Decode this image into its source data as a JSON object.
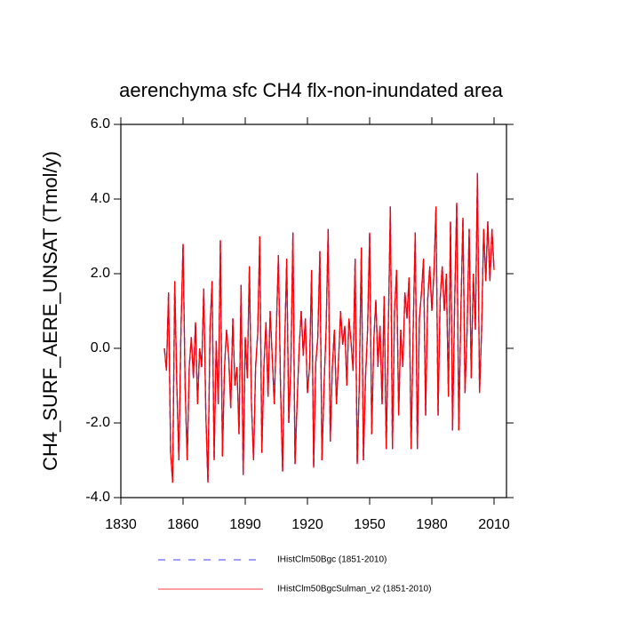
{
  "chart_data": {
    "type": "line",
    "title": "aerenchyma sfc CH4 flx-non-inundated area",
    "y_label": "CH4_SURF_AERE_UNSAT  (Tmol/y)",
    "x": [
      1851,
      1852,
      1853,
      1854,
      1855,
      1856,
      1857,
      1858,
      1859,
      1860,
      1861,
      1862,
      1863,
      1864,
      1865,
      1866,
      1867,
      1868,
      1869,
      1870,
      1871,
      1872,
      1873,
      1874,
      1875,
      1876,
      1877,
      1878,
      1879,
      1880,
      1881,
      1882,
      1883,
      1884,
      1885,
      1886,
      1887,
      1888,
      1889,
      1890,
      1891,
      1892,
      1893,
      1894,
      1895,
      1896,
      1897,
      1898,
      1899,
      1900,
      1901,
      1902,
      1903,
      1904,
      1905,
      1906,
      1907,
      1908,
      1909,
      1910,
      1911,
      1912,
      1913,
      1914,
      1915,
      1916,
      1917,
      1918,
      1919,
      1920,
      1921,
      1922,
      1923,
      1924,
      1925,
      1926,
      1927,
      1928,
      1929,
      1930,
      1931,
      1932,
      1933,
      1934,
      1935,
      1936,
      1937,
      1938,
      1939,
      1940,
      1941,
      1942,
      1943,
      1944,
      1945,
      1946,
      1947,
      1948,
      1949,
      1950,
      1951,
      1952,
      1953,
      1954,
      1955,
      1956,
      1957,
      1958,
      1959,
      1960,
      1961,
      1962,
      1963,
      1964,
      1965,
      1966,
      1967,
      1968,
      1969,
      1970,
      1971,
      1972,
      1973,
      1974,
      1975,
      1976,
      1977,
      1978,
      1979,
      1980,
      1981,
      1982,
      1983,
      1984,
      1985,
      1986,
      1987,
      1988,
      1989,
      1990,
      1991,
      1992,
      1993,
      1994,
      1995,
      1996,
      1997,
      1998,
      1999,
      2000,
      2001,
      2002,
      2003,
      2004,
      2005,
      2006,
      2007,
      2008,
      2009,
      2010
    ],
    "series": [
      {
        "name": "IHistClm50Bgc (1851-2010)",
        "color": "#0000ff",
        "dashed": true,
        "values": [
          0.0,
          -0.6,
          1.5,
          -2.8,
          -3.6,
          1.8,
          -1.0,
          -3.0,
          0.5,
          2.8,
          -1.0,
          -3.0,
          -0.5,
          0.3,
          -0.8,
          0.7,
          -1.5,
          0.0,
          -0.5,
          1.6,
          -1.8,
          -3.6,
          0.5,
          1.8,
          -3.0,
          0.2,
          -1.5,
          2.9,
          -2.9,
          -0.5,
          0.5,
          -0.2,
          -1.6,
          0.8,
          -1.0,
          -0.5,
          -2.3,
          1.7,
          -3.4,
          0.3,
          -0.8,
          2.2,
          -1.5,
          -3.0,
          -0.5,
          0.4,
          3.0,
          -2.8,
          -0.5,
          0.7,
          -1.3,
          1.0,
          -0.2,
          -1.5,
          0.5,
          2.5,
          -1.0,
          -3.3,
          0.0,
          2.4,
          -2.0,
          -0.5,
          3.1,
          -3.1,
          -1.5,
          0.0,
          1.0,
          -0.2,
          0.8,
          -1.2,
          -0.5,
          2.1,
          -3.2,
          -0.4,
          0.3,
          2.6,
          -3.0,
          -1.0,
          0.5,
          3.2,
          -2.5,
          -0.5,
          0.5,
          -1.5,
          -0.3,
          1.0,
          0.1,
          0.6,
          -1.0,
          0.8,
          0.2,
          -0.6,
          2.4,
          -3.1,
          -1.0,
          2.7,
          -3.0,
          -0.8,
          0.5,
          3.1,
          -2.3,
          0.2,
          1.3,
          -0.5,
          0.6,
          -1.5,
          1.4,
          -2.7,
          0.5,
          3.8,
          -2.7,
          1.0,
          2.1,
          -1.8,
          0.5,
          -0.5,
          1.5,
          0.8,
          1.9,
          -2.7,
          0.5,
          3.1,
          -2.7,
          0.8,
          1.5,
          2.4,
          -1.8,
          1.3,
          2.2,
          1.0,
          2.0,
          3.8,
          -1.8,
          1.3,
          2.2,
          1.0,
          2.0,
          -1.3,
          3.4,
          -2.2,
          1.2,
          3.9,
          -2.2,
          1.0,
          3.5,
          -1.2,
          0.5,
          3.2,
          -0.8,
          2.0,
          0.5,
          4.7,
          -1.2,
          0.5,
          3.2,
          1.8,
          3.4,
          1.8,
          3.2,
          2.1
        ]
      },
      {
        "name": "IHistClm50BgcSulman_v2 (1851-2010)",
        "color": "#ff0000",
        "dashed": false,
        "values": [
          0.0,
          -0.6,
          1.5,
          -2.8,
          -3.6,
          1.8,
          -1.0,
          -3.0,
          0.5,
          2.8,
          -1.0,
          -3.0,
          -0.5,
          0.3,
          -0.8,
          0.7,
          -1.5,
          0.0,
          -0.5,
          1.6,
          -1.8,
          -3.6,
          0.5,
          1.8,
          -3.0,
          0.2,
          -1.5,
          2.9,
          -2.9,
          -0.5,
          0.5,
          -0.2,
          -1.6,
          0.8,
          -1.0,
          -0.5,
          -2.3,
          1.7,
          -3.4,
          0.3,
          -0.8,
          2.2,
          -1.5,
          -3.0,
          -0.5,
          0.4,
          3.0,
          -2.8,
          -0.5,
          0.7,
          -1.3,
          1.0,
          -0.2,
          -1.5,
          0.5,
          2.5,
          -1.0,
          -3.3,
          0.0,
          2.4,
          -2.0,
          -0.5,
          3.1,
          -3.1,
          -1.5,
          0.0,
          1.0,
          -0.2,
          0.8,
          -1.2,
          -0.5,
          2.1,
          -3.2,
          -0.4,
          0.3,
          2.6,
          -3.0,
          -1.0,
          0.5,
          3.2,
          -2.5,
          -0.5,
          0.5,
          -1.5,
          -0.3,
          1.0,
          0.1,
          0.6,
          -1.0,
          0.8,
          0.2,
          -0.6,
          2.4,
          -3.1,
          -1.0,
          2.7,
          -3.0,
          -0.8,
          0.5,
          3.1,
          -2.3,
          0.2,
          1.3,
          -0.5,
          0.6,
          -1.5,
          1.4,
          -2.7,
          0.5,
          3.8,
          -2.7,
          1.0,
          2.1,
          -1.8,
          0.5,
          -0.5,
          1.5,
          0.8,
          1.9,
          -2.7,
          0.5,
          3.1,
          -2.7,
          0.8,
          1.5,
          2.4,
          -1.8,
          1.3,
          2.2,
          1.0,
          2.0,
          3.8,
          -1.8,
          1.3,
          2.2,
          1.0,
          2.0,
          -1.3,
          3.4,
          -2.2,
          1.2,
          3.9,
          -2.2,
          1.0,
          3.5,
          -1.2,
          0.5,
          3.2,
          -0.8,
          2.0,
          0.5,
          4.7,
          -1.2,
          0.5,
          3.2,
          1.8,
          3.4,
          1.8,
          3.2,
          2.1
        ]
      }
    ],
    "xlim": [
      1830,
      2016
    ],
    "xticks": [
      1830,
      1860,
      1890,
      1920,
      1950,
      1980,
      2010
    ],
    "ylim": [
      -4,
      6
    ],
    "yticks": [
      {
        "value": -4,
        "label": "-4.0"
      },
      {
        "value": -2,
        "label": "-2.0"
      },
      {
        "value": 0,
        "label": "0.0"
      },
      {
        "value": 2,
        "label": "2.0"
      },
      {
        "value": 4,
        "label": "4.0"
      },
      {
        "value": 6,
        "label": "6.0"
      }
    ],
    "grid": false,
    "legend_position": "bottom"
  }
}
